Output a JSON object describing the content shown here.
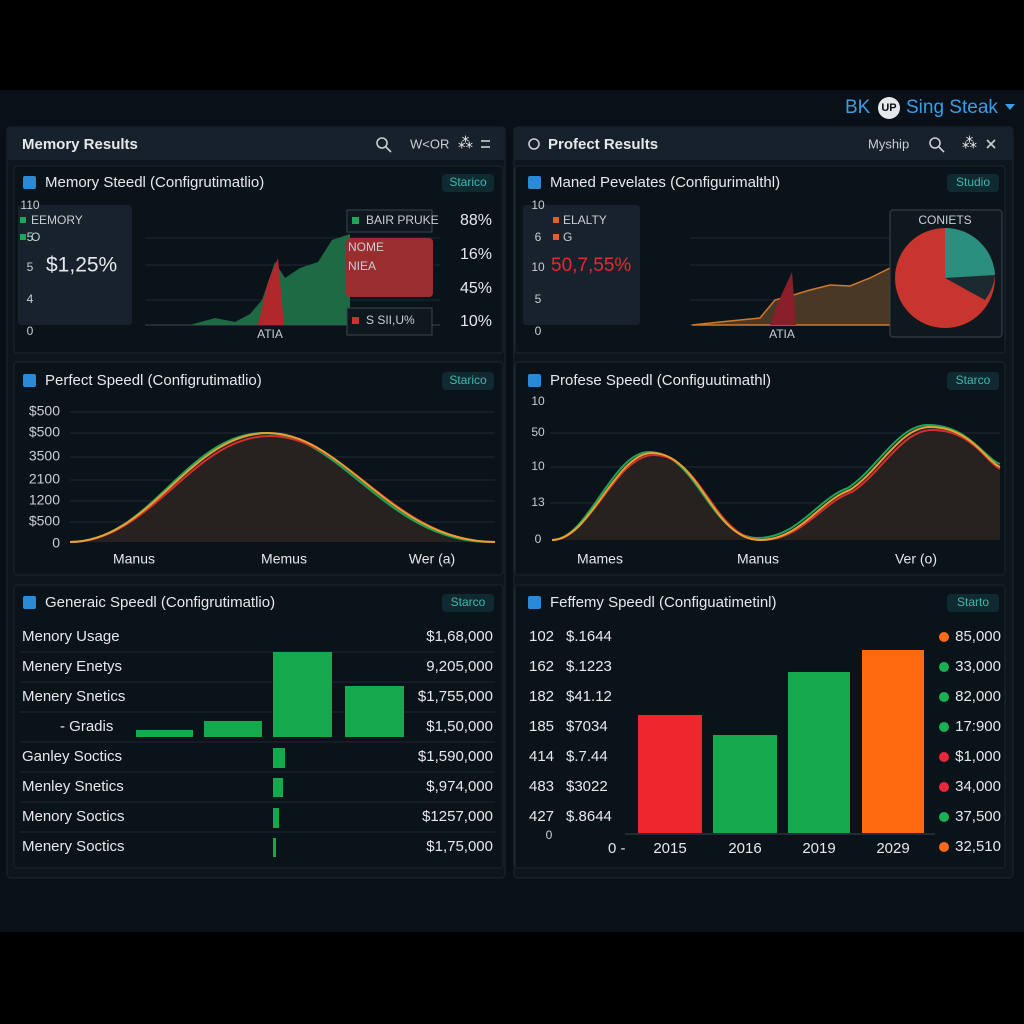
{
  "brand": {
    "prefix": "BK",
    "badge": "UP",
    "name": "Sing Steak"
  },
  "left": {
    "title": "Memory Results",
    "toolbar": "W<OR",
    "card1": {
      "title": "Memory Steedl (Configrutimatlio)",
      "badge": "Starico",
      "y_labels": [
        "110",
        "5",
        "5",
        "4",
        "0"
      ],
      "legend": [
        "EEMORY",
        "O"
      ],
      "big_value": "$1,25%",
      "box_labels": [
        "BAIR PRUKE",
        "NOME",
        "NIEA",
        "S SII,U%"
      ],
      "percents": [
        "88%",
        "16%",
        "45%",
        "10%"
      ],
      "x_label": "ATIA"
    },
    "card2": {
      "title": "Perfect Speedl (Configrutimatlio)",
      "badge": "Starico",
      "y_labels": [
        "$500",
        "$500",
        "3500",
        "2100",
        "1200",
        "$500",
        "0"
      ],
      "x_labels": [
        "Manus",
        "Memus",
        "Wer (a)"
      ]
    },
    "card3": {
      "title": "Generaic Speedl (Configrutimatlio)",
      "badge": "Starco",
      "rows": [
        [
          "Menory Usage",
          "$1,68,000"
        ],
        [
          "Menery Enetys",
          "9,205,000"
        ],
        [
          "Menery Snetics",
          "$1,755,000"
        ],
        [
          "- Gradis",
          "$1,50,000"
        ],
        [
          "Ganley Soctics",
          "$1,590,000"
        ],
        [
          "Menley Snetics",
          "$,974,000"
        ],
        [
          "Menory Soctics",
          "$1257,000"
        ],
        [
          "Menery Soctics",
          "$1,75,000"
        ]
      ]
    }
  },
  "right": {
    "title": "Profect Results",
    "toolbar": "Myship",
    "card1": {
      "title": "Maned Pevelates (Configurimalthl)",
      "badge": "Studio",
      "y_labels": [
        "10",
        "6",
        "10",
        "5",
        "0"
      ],
      "legend": [
        "ELALTY",
        "G"
      ],
      "big_value": "50,7,55%",
      "pie_title": "CONIETS",
      "x_label": "ATIA"
    },
    "card2": {
      "title": "Profese Speedl (Configuutimathl)",
      "badge": "Starco",
      "y_labels": [
        "10",
        "50",
        "10",
        "13",
        "0"
      ],
      "x_labels": [
        "Mames",
        "Manus",
        "Ver (o)"
      ]
    },
    "card3": {
      "title": "Feffemy Speedl (Configuatimetinl)",
      "badge": "Starto",
      "rows": [
        [
          "102",
          "$.1644"
        ],
        [
          "162",
          "$.1223"
        ],
        [
          "182",
          "$41.12"
        ],
        [
          "185",
          "$7034"
        ],
        [
          "414",
          "$.7.44"
        ],
        [
          "483",
          "$3022"
        ],
        [
          "427",
          "$.8644"
        ]
      ],
      "zero_labels": [
        "0",
        "0 -"
      ],
      "years": [
        "2015",
        "2016",
        "2019",
        "2029"
      ],
      "list": [
        {
          "color": "#ff6a1a",
          "value": "85,000"
        },
        {
          "color": "#18b054",
          "value": "33,000"
        },
        {
          "color": "#18b054",
          "value": "82,000"
        },
        {
          "color": "#18b054",
          "value": "17:900"
        },
        {
          "color": "#e8283a",
          "value": "$1,000"
        },
        {
          "color": "#e8283a",
          "value": "34,000"
        },
        {
          "color": "#18b054",
          "value": "37,500"
        },
        {
          "color": "#ff6a1a",
          "value": "32,510"
        }
      ]
    }
  }
}
